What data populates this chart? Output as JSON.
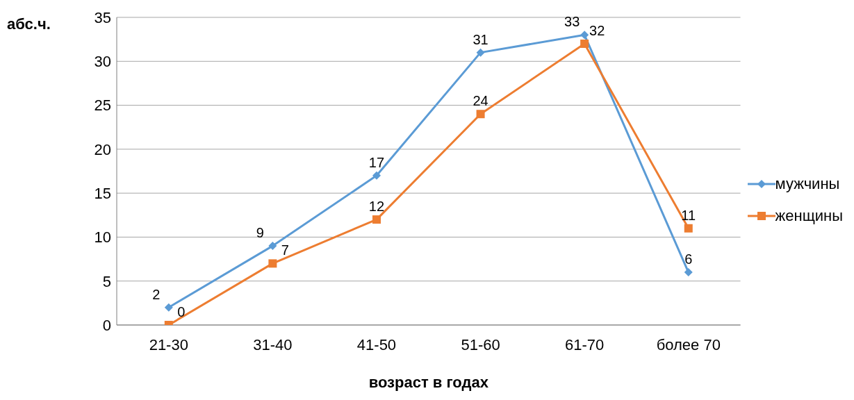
{
  "chart_data": {
    "type": "line",
    "xlabel": "возраст в годах",
    "ylabel": "абс.ч.",
    "categories": [
      "21-30",
      "31-40",
      "41-50",
      "51-60",
      "61-70",
      "более 70"
    ],
    "series": [
      {
        "name": "мужчины",
        "color": "#5b9bd5",
        "marker": "diamond",
        "values": [
          2,
          9,
          17,
          31,
          33,
          6
        ]
      },
      {
        "name": "женщины",
        "color": "#ed7d31",
        "marker": "square",
        "values": [
          0,
          7,
          12,
          24,
          32,
          11
        ]
      }
    ],
    "ylim": [
      0,
      35
    ],
    "yticks": [
      0,
      5,
      10,
      15,
      20,
      25,
      30,
      35
    ],
    "grid": "y",
    "legend": "right",
    "data_labels": true
  }
}
